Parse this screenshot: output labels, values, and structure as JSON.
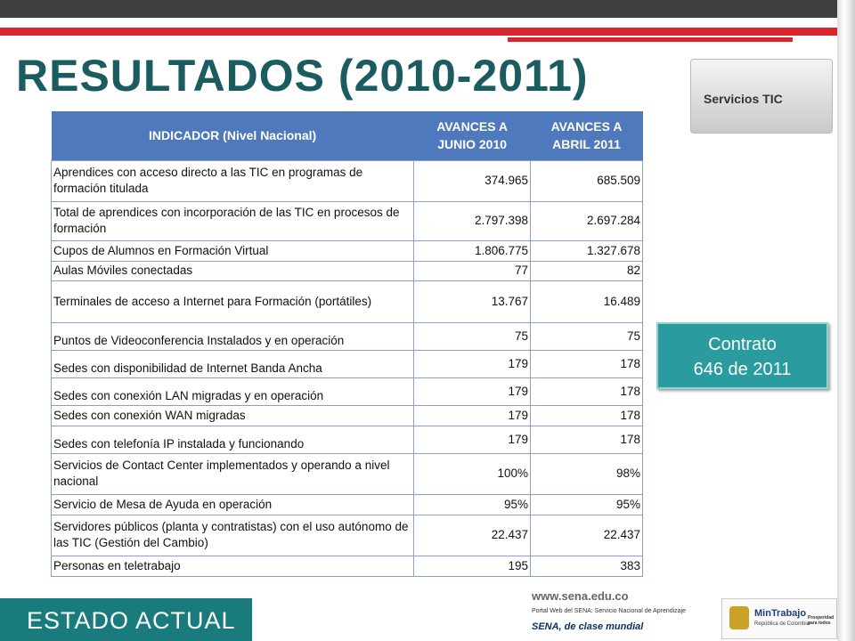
{
  "title": "RESULTADOS (2010-2011)",
  "table": {
    "headers": [
      "INDICADOR (Nivel Nacional)",
      "AVANCES A JUNIO 2010",
      "AVANCES A ABRIL 2011"
    ],
    "rows": [
      [
        "Aprendices con acceso directo a las TIC en programas de formación titulada",
        "374.965",
        "685.509"
      ],
      [
        "Total de aprendices con incorporación de las TIC en procesos de formación",
        "2.797.398",
        "2.697.284"
      ],
      [
        "Cupos de Alumnos en Formación Virtual",
        "1.806.775",
        "1.327.678"
      ],
      [
        "Aulas Móviles conectadas",
        "77",
        "82"
      ],
      [
        "Terminales de acceso a Internet para Formación (portátiles)",
        "13.767",
        "16.489"
      ],
      [
        "Puntos de Videoconferencia Instalados y en operación",
        "75",
        "75"
      ],
      [
        "Sedes con disponibilidad de Internet Banda Ancha",
        "179",
        "178"
      ],
      [
        "Sedes con conexión LAN migradas y en operación",
        "179",
        "178"
      ],
      [
        "Sedes con conexión WAN migradas",
        "179",
        "178"
      ],
      [
        "Sedes con telefonía IP instalada y funcionando",
        "179",
        "178"
      ],
      [
        "Servicios de Contact Center implementados y operando a nivel nacional",
        "100%",
        "98%"
      ],
      [
        "Servicio de Mesa de Ayuda en operación",
        "95%",
        "95%"
      ],
      [
        "Servidores públicos (planta y contratistas) con el uso autónomo de las TIC (Gestión del Cambio)",
        "22.437",
        "22.437"
      ],
      [
        "Personas en teletrabajo",
        "195",
        "383"
      ]
    ]
  },
  "contract": [
    "Contrato",
    "646 de 2011"
  ],
  "banner": "Servicios TIC",
  "footer": {
    "label": "ESTADO ACTUAL",
    "url": "www.sena.edu.co",
    "portal": "Portal Web del SENA: Servicio Nacional de Aprendizaje",
    "slogan": "SENA, de clase mundial",
    "ministry": "MinTrabajo",
    "country": "República de Colombia",
    "motto": "Prosperidad para todos"
  }
}
